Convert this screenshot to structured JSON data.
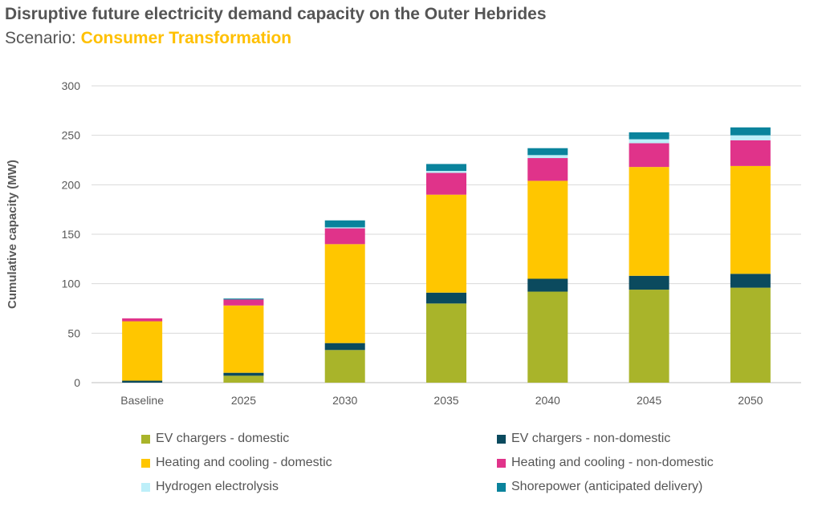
{
  "title": "Disruptive future electricity demand capacity on the Outer Hebrides",
  "subtitle_prefix": "Scenario: ",
  "subtitle_scenario": "Consumer Transformation",
  "chart_data": {
    "type": "bar",
    "stacked": true,
    "ylabel": "Cumulative capacity (MW)",
    "xlabel": "",
    "ylim": [
      0,
      300
    ],
    "yticks": [
      0,
      50,
      100,
      150,
      200,
      250,
      300
    ],
    "categories": [
      "Baseline",
      "2025",
      "2030",
      "2035",
      "2040",
      "2045",
      "2050"
    ],
    "series": [
      {
        "name": "EV chargers - domestic",
        "color": "#A9B42A",
        "values": [
          0,
          7,
          33,
          80,
          92,
          94,
          96
        ]
      },
      {
        "name": "EV chargers - non-domestic",
        "color": "#0B4A5E",
        "values": [
          2,
          3,
          7,
          11,
          13,
          14,
          14
        ]
      },
      {
        "name": "Heating and cooling - domestic",
        "color": "#FFC600",
        "values": [
          60,
          68,
          100,
          99,
          99,
          110,
          109
        ]
      },
      {
        "name": "Heating and cooling - non-domestic",
        "color": "#E0338A",
        "values": [
          3,
          6,
          16,
          22,
          23,
          24,
          26
        ]
      },
      {
        "name": "Hydrogen electrolysis",
        "color": "#BDEFF9",
        "values": [
          0,
          0,
          1,
          2,
          3,
          4,
          5
        ]
      },
      {
        "name": "Shorepower (anticipated delivery)",
        "color": "#0A839C",
        "values": [
          0,
          1,
          7,
          7,
          7,
          7,
          8
        ]
      }
    ],
    "legend_position": "bottom"
  }
}
